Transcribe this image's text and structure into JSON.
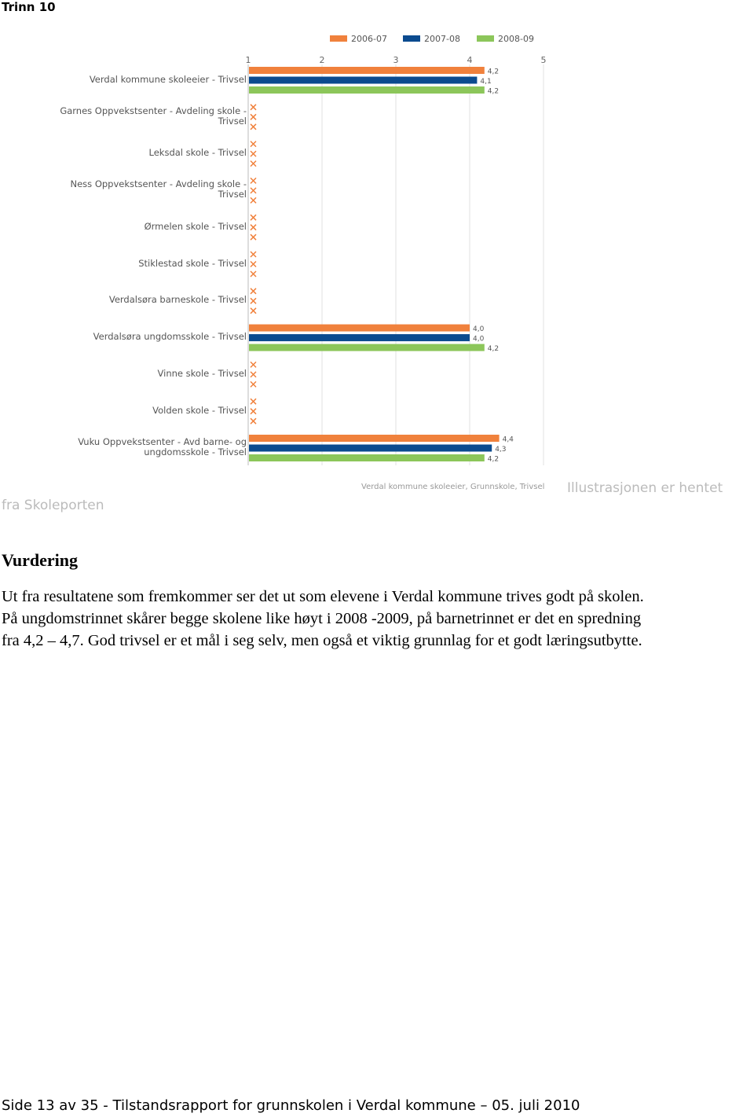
{
  "header": {
    "title": "Trinn 10"
  },
  "chart_data": {
    "type": "hbar",
    "categories": [
      "Verdal kommune skoleeier - Trivsel",
      "Garnes Oppvekstsenter - Avdeling skole -\nTrivsel",
      "Leksdal skole - Trivsel",
      "Ness Oppvekstsenter - Avdeling skole -\nTrivsel",
      "Ørmelen skole - Trivsel",
      "Stiklestad skole - Trivsel",
      "Verdalsøra barneskole - Trivsel",
      "Verdalsøra ungdomsskole - Trivsel",
      "Vinne skole - Trivsel",
      "Volden skole - Trivsel",
      "Vuku Oppvekstsenter - Avd barne- og\nungdomsskole - Trivsel"
    ],
    "series": [
      {
        "name": "2006-07",
        "color": "#f0813c",
        "values": [
          4.2,
          null,
          null,
          null,
          null,
          null,
          null,
          4.0,
          null,
          null,
          4.4
        ],
        "value_labels": [
          "4,2",
          null,
          null,
          null,
          null,
          null,
          null,
          "4,0",
          null,
          null,
          "4,4"
        ]
      },
      {
        "name": "2007-08",
        "color": "#0b4b8f",
        "values": [
          4.1,
          null,
          null,
          null,
          null,
          null,
          null,
          4.0,
          null,
          null,
          4.3
        ],
        "value_labels": [
          "4,1",
          null,
          null,
          null,
          null,
          null,
          null,
          "4,0",
          null,
          null,
          "4,3"
        ]
      },
      {
        "name": "2008-09",
        "color": "#8cc65a",
        "values": [
          4.2,
          null,
          null,
          null,
          null,
          null,
          null,
          4.2,
          null,
          null,
          4.2
        ],
        "value_labels": [
          "4,2",
          null,
          null,
          null,
          null,
          null,
          null,
          "4,2",
          null,
          null,
          "4,2"
        ]
      }
    ],
    "xlim": [
      1,
      5
    ],
    "xticks": [
      1,
      2,
      3,
      4,
      5
    ],
    "grid": true,
    "subtitle": "Verdal kommune skoleeier, Grunnskole, Trivsel"
  },
  "caption": {
    "lines": [
      "Illustrasjonen er hentet",
      "fra Skoleporten"
    ]
  },
  "section": {
    "heading": "Vurdering",
    "lines": [
      "Ut fra resultatene som fremkommer ser det ut som elevene i Verdal kommune trives godt på skolen.",
      "På ungdomstrinnet skårer begge skolene like høyt i 2008 -2009, på barnetrinnet er det en spredning",
      "fra 4,2 – 4,7. God trivsel er et mål i seg selv, men også et viktig grunnlag for et godt læringsutbytte."
    ]
  },
  "footer": {
    "text": "Side 13 av 35 - Tilstandsrapport for grunnskolen i Verdal kommune – 05. juli 2010"
  }
}
